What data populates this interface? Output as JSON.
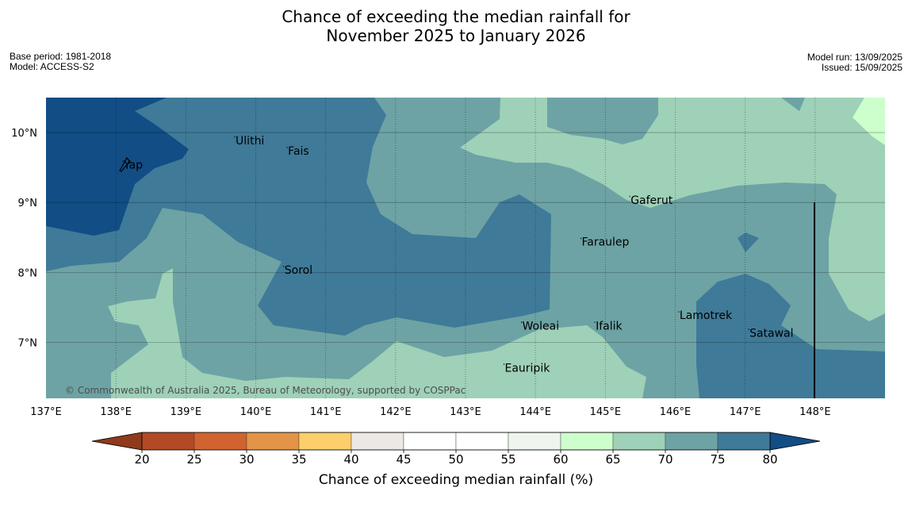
{
  "title": {
    "line1": "Chance of exceeding the median rainfall for",
    "line2": "November 2025 to January 2026"
  },
  "meta": {
    "base_period": "Base period: 1981-2018",
    "model": "Model: ACCESS-S2",
    "model_run": "Model run: 13/09/2025",
    "issued": "Issued: 15/09/2025"
  },
  "copyright": "© Commonwealth of Australia 2025, Bureau of Meteorology, supported by COSPPac",
  "map": {
    "lon_range": [
      137.0,
      149.0
    ],
    "lat_range": [
      6.2,
      10.5
    ],
    "lon_ticks": [
      {
        "value": 137,
        "label": "137°E"
      },
      {
        "value": 138,
        "label": "138°E"
      },
      {
        "value": 139,
        "label": "139°E"
      },
      {
        "value": 140,
        "label": "140°E"
      },
      {
        "value": 141,
        "label": "141°E"
      },
      {
        "value": 142,
        "label": "142°E"
      },
      {
        "value": 143,
        "label": "143°E"
      },
      {
        "value": 144,
        "label": "144°E"
      },
      {
        "value": 145,
        "label": "145°E"
      },
      {
        "value": 146,
        "label": "146°E"
      },
      {
        "value": 147,
        "label": "147°E"
      },
      {
        "value": 148,
        "label": "148°E"
      }
    ],
    "lat_ticks": [
      {
        "value": 10,
        "label": "10°N"
      },
      {
        "value": 9,
        "label": "9°N"
      },
      {
        "value": 8,
        "label": "8°N"
      },
      {
        "value": 7,
        "label": "7°N"
      }
    ],
    "places": [
      {
        "name": "Yap",
        "lon": 138.1,
        "lat": 9.55
      },
      {
        "name": "Ulithi",
        "lon": 139.7,
        "lat": 9.9
      },
      {
        "name": "Fais",
        "lon": 140.45,
        "lat": 9.75
      },
      {
        "name": "Gaferut",
        "lon": 145.35,
        "lat": 9.05
      },
      {
        "name": "Faraulep",
        "lon": 144.65,
        "lat": 8.45
      },
      {
        "name": "Sorol",
        "lon": 140.4,
        "lat": 8.05
      },
      {
        "name": "Lamotrek",
        "lon": 146.05,
        "lat": 7.4
      },
      {
        "name": "Satawal",
        "lon": 147.05,
        "lat": 7.15
      },
      {
        "name": "Woleai",
        "lon": 143.8,
        "lat": 7.25
      },
      {
        "name": "Ifalik",
        "lon": 144.85,
        "lat": 7.25
      },
      {
        "name": "Eauripik",
        "lon": 143.55,
        "lat": 6.65
      }
    ]
  },
  "colorbar": {
    "title": "Chance of exceeding median rainfall (%)",
    "ticks": [
      "20",
      "25",
      "30",
      "35",
      "40",
      "45",
      "50",
      "55",
      "60",
      "65",
      "70",
      "75",
      "80"
    ],
    "under_color": "#8f3a1c",
    "over_color": "#124d85",
    "colors": [
      "#b34a25",
      "#d06330",
      "#e39446",
      "#fdcf6a",
      "#ece8e3",
      "#ffffff",
      "#ffffff",
      "#edf5ec",
      "#ccffcc",
      "#9ed1b7",
      "#6da3a5",
      "#3f7a98"
    ]
  }
}
